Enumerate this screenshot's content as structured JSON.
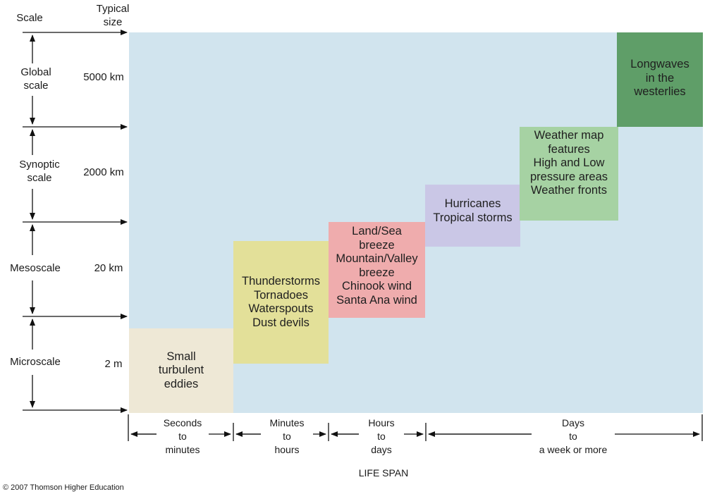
{
  "headers": {
    "scale": "Scale",
    "size": "Typical\nsize"
  },
  "scales": [
    {
      "name": "Global\nscale",
      "size": "5000 km"
    },
    {
      "name": "Synoptic\nscale",
      "size": "2000 km"
    },
    {
      "name": "Mesoscale",
      "size": "20 km"
    },
    {
      "name": "Microscale",
      "size": "2 m"
    }
  ],
  "phenomena": [
    {
      "text": "Small\nturbulent\neddies",
      "color": "#eee8d6"
    },
    {
      "text": "Thunderstorms\nTornadoes\nWaterspouts\nDust devils",
      "color": "#e3e099"
    },
    {
      "text": "Land/Sea\nbreeze\nMountain/Valley\nbreeze\nChinook wind\nSanta Ana wind",
      "color": "#efacad"
    },
    {
      "text": "Hurricanes\nTropical storms",
      "color": "#cac7e6"
    },
    {
      "text": "Weather map\nfeatures\nHigh and Low\npressure areas\nWeather fronts",
      "color": "#a6d2a3"
    },
    {
      "text": "Longwaves\nin the\nwesterlies",
      "color": "#5f9e68"
    }
  ],
  "lifespans": [
    "Seconds\nto\nminutes",
    "Minutes\nto\nhours",
    "Hours\nto\ndays",
    "Days\nto\na week or more"
  ],
  "axis_label": "LIFE SPAN",
  "background_color": "#d1e4ee",
  "copyright": "© 2007 Thomson Higher Education"
}
